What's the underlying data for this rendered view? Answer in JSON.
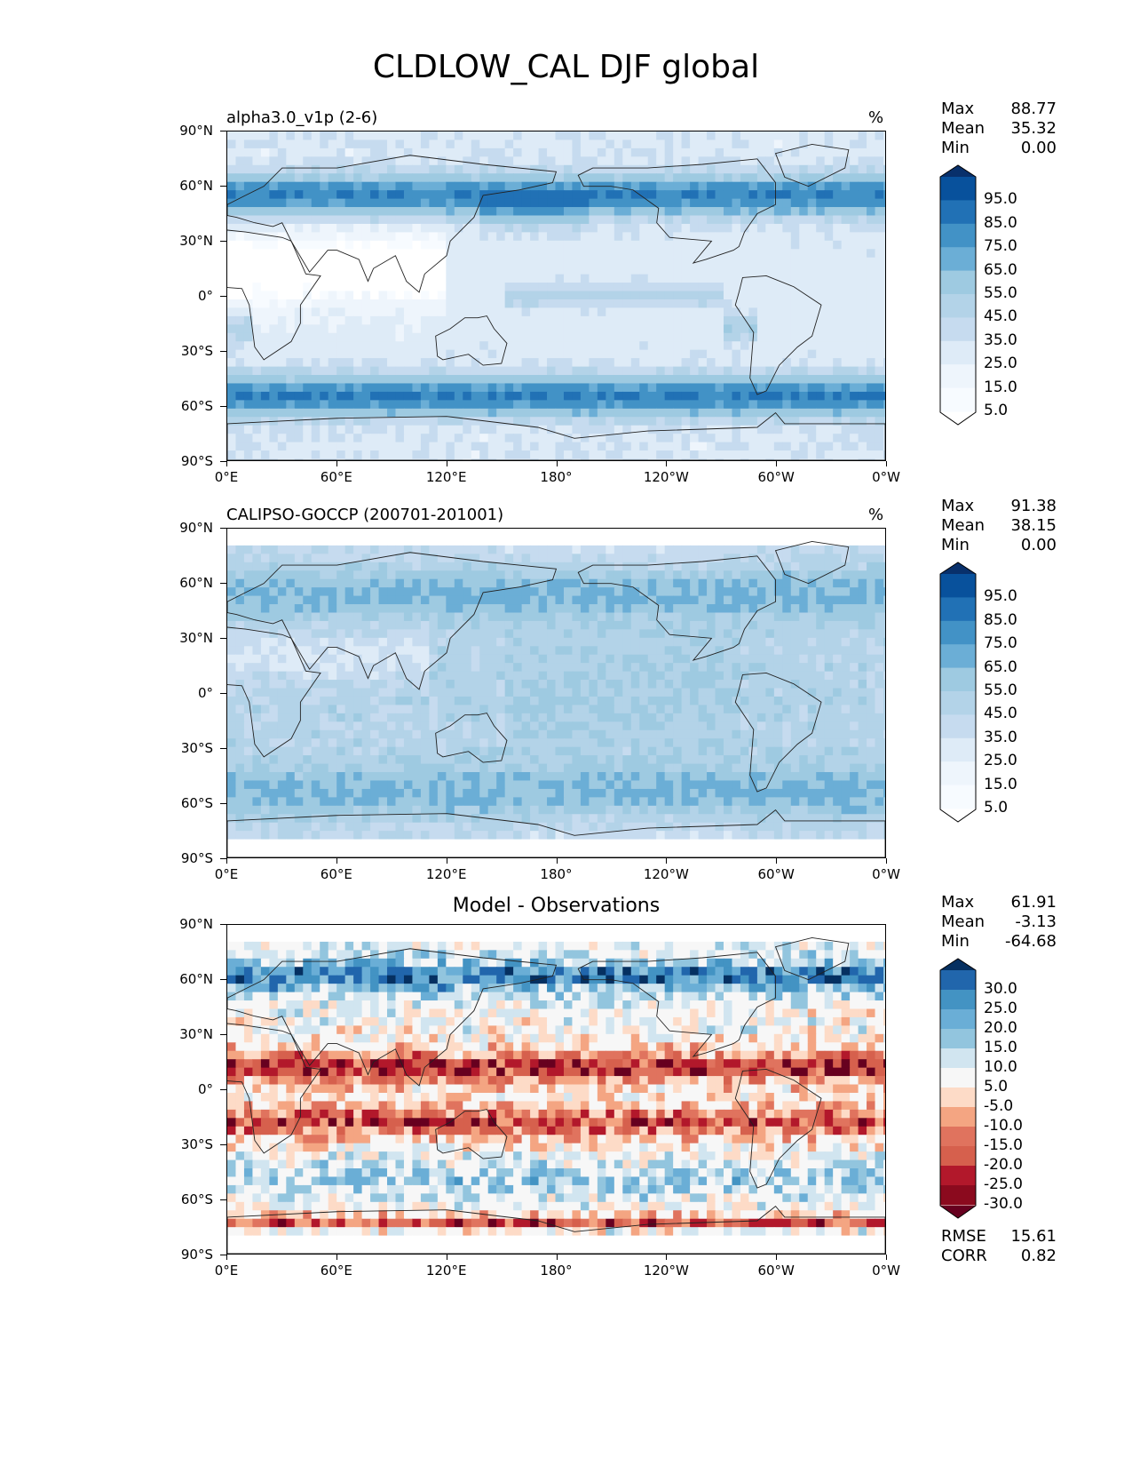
{
  "title": "CLDLOW_CAL DJF global",
  "axes": {
    "y_ticks": [
      "90°N",
      "60°N",
      "30°N",
      "0°",
      "30°S",
      "60°S",
      "90°S"
    ],
    "x_ticks": [
      "0°E",
      "60°E",
      "120°E",
      "180°",
      "120°W",
      "60°W",
      "0°W"
    ]
  },
  "panels": [
    {
      "id": "test",
      "subtitle": "alpha3.0_v1p (2-6)",
      "center_title": "",
      "units": "%",
      "stats": [
        {
          "label": "Max",
          "value": "88.77"
        },
        {
          "label": "Mean",
          "value": "35.32"
        },
        {
          "label": "Min",
          "value": "0.00"
        }
      ],
      "colorbar": {
        "labels": [
          "95.0",
          "85.0",
          "75.0",
          "65.0",
          "55.0",
          "45.0",
          "35.0",
          "25.0",
          "15.0",
          "5.0"
        ],
        "colors": [
          "#08306b",
          "#08519c",
          "#2171b5",
          "#4292c6",
          "#6baed6",
          "#9ecae1",
          "#b3d3e8",
          "#c6dbef",
          "#deebf7",
          "#eef5fc",
          "#f7fbff",
          "#ffffff"
        ]
      },
      "metrics": []
    },
    {
      "id": "reference",
      "subtitle": "CALIPSO-GOCCP (200701-201001)",
      "center_title": "",
      "units": "%",
      "stats": [
        {
          "label": "Max",
          "value": "91.38"
        },
        {
          "label": "Mean",
          "value": "38.15"
        },
        {
          "label": "Min",
          "value": "0.00"
        }
      ],
      "colorbar": {
        "labels": [
          "95.0",
          "85.0",
          "75.0",
          "65.0",
          "55.0",
          "45.0",
          "35.0",
          "25.0",
          "15.0",
          "5.0"
        ],
        "colors": [
          "#08306b",
          "#08519c",
          "#2171b5",
          "#4292c6",
          "#6baed6",
          "#9ecae1",
          "#b3d3e8",
          "#c6dbef",
          "#deebf7",
          "#eef5fc",
          "#f7fbff",
          "#ffffff"
        ]
      },
      "metrics": []
    },
    {
      "id": "difference",
      "subtitle": "",
      "center_title": "Model - Observations",
      "units": "",
      "stats": [
        {
          "label": "Max",
          "value": "61.91"
        },
        {
          "label": "Mean",
          "value": "-3.13"
        },
        {
          "label": "Min",
          "value": "-64.68"
        }
      ],
      "colorbar": {
        "labels": [
          "30.0",
          "25.0",
          "20.0",
          "15.0",
          "10.0",
          "5.0",
          "-5.0",
          "-10.0",
          "-15.0",
          "-20.0",
          "-25.0",
          "-30.0"
        ],
        "colors": [
          "#053061",
          "#2166ac",
          "#4393c3",
          "#6aaed6",
          "#92c5de",
          "#d1e5f0",
          "#f7f7f7",
          "#fddbc7",
          "#f4a582",
          "#e0735e",
          "#d6604d",
          "#b2182b",
          "#8b0a1e",
          "#67001f"
        ]
      },
      "metrics": [
        {
          "label": "RMSE",
          "value": "15.61"
        },
        {
          "label": "CORR",
          "value": "0.82"
        }
      ]
    }
  ]
}
